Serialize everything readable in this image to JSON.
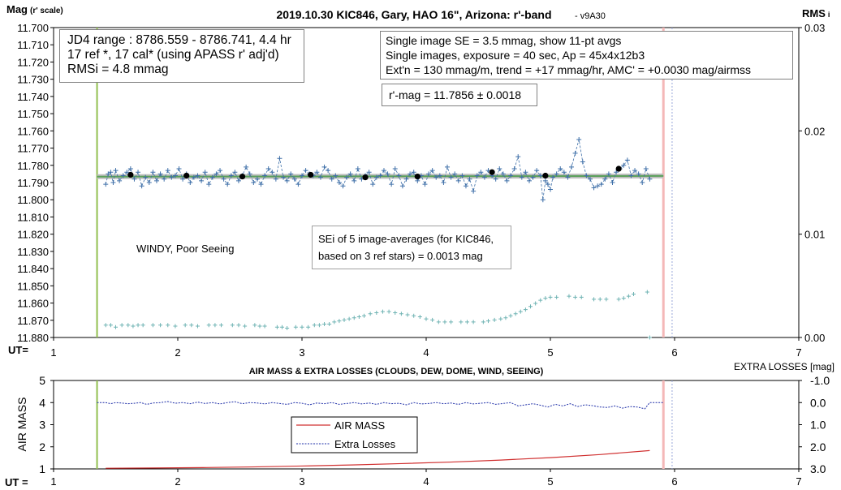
{
  "colors": {
    "mag_series": "#3e6fa8",
    "avg_points": "#000000",
    "trend_band": "#bfbfbf",
    "trend_line": "#5aa05a",
    "rms_series": "#6fb3b3",
    "start_marker": "#92c050",
    "end_marker": "#f4b8b8",
    "dotted_marker": "#9aa8d8",
    "airmass": "#d03030",
    "extra_losses": "#1f2fa8"
  },
  "chart_data": [
    {
      "type": "scatter",
      "title": "2019.10.30 KIC846, Gary, HAO 16\", Arizona: r'-band",
      "version": "- v9A30",
      "ylabel_left_main": "Mag",
      "ylabel_left_sub": "(r' scale)",
      "ylabel_right_main": "RMS",
      "ylabel_right_sub": "i",
      "xlabel": "UT=",
      "xlim": [
        1,
        7
      ],
      "x_ticks": [
        "1",
        "2",
        "3",
        "4",
        "5",
        "6",
        "7"
      ],
      "ylim_left": [
        11.88,
        11.7
      ],
      "y_ticks_left": [
        "11.700",
        "11.710",
        "11.720",
        "11.730",
        "11.740",
        "11.750",
        "11.760",
        "11.770",
        "11.780",
        "11.790",
        "11.800",
        "11.810",
        "11.820",
        "11.830",
        "11.840",
        "11.850",
        "11.860",
        "11.870",
        "11.880"
      ],
      "ylim_right": [
        0,
        0.03
      ],
      "y_ticks_right": [
        "0.00",
        "0.01",
        "0.02",
        "0.03"
      ],
      "markers": {
        "start_ut": 1.35,
        "end_ut": 5.91,
        "dotted_ut": 5.98
      },
      "trend": {
        "x": [
          1.35,
          5.91
        ],
        "y": [
          11.7866,
          11.7862
        ]
      },
      "series": [
        {
          "name": "",
          "style": "plus-dashed",
          "x": [
            1.42,
            1.44,
            1.46,
            1.48,
            1.5,
            1.53,
            1.56,
            1.59,
            1.62,
            1.65,
            1.68,
            1.71,
            1.74,
            1.77,
            1.8,
            1.83,
            1.86,
            1.89,
            1.92,
            1.95,
            1.98,
            2.01,
            2.04,
            2.07,
            2.1,
            2.13,
            2.16,
            2.19,
            2.22,
            2.25,
            2.28,
            2.31,
            2.34,
            2.37,
            2.4,
            2.43,
            2.46,
            2.49,
            2.52,
            2.55,
            2.58,
            2.61,
            2.64,
            2.67,
            2.7,
            2.73,
            2.76,
            2.79,
            2.82,
            2.85,
            2.88,
            2.91,
            2.94,
            2.97,
            3.0,
            3.03,
            3.06,
            3.09,
            3.12,
            3.15,
            3.18,
            3.21,
            3.24,
            3.27,
            3.3,
            3.33,
            3.36,
            3.39,
            3.42,
            3.45,
            3.48,
            3.51,
            3.54,
            3.57,
            3.6,
            3.63,
            3.66,
            3.69,
            3.72,
            3.75,
            3.78,
            3.81,
            3.84,
            3.87,
            3.9,
            3.93,
            3.96,
            3.99,
            4.02,
            4.05,
            4.08,
            4.11,
            4.14,
            4.17,
            4.2,
            4.23,
            4.26,
            4.29,
            4.32,
            4.35,
            4.38,
            4.41,
            4.44,
            4.47,
            4.5,
            4.53,
            4.56,
            4.59,
            4.62,
            4.65,
            4.68,
            4.71,
            4.74,
            4.77,
            4.8,
            4.83,
            4.86,
            4.89,
            4.92,
            4.94,
            4.96,
            4.98,
            5.0,
            5.02,
            5.05,
            5.08,
            5.11,
            5.14,
            5.17,
            5.2,
            5.23,
            5.26,
            5.29,
            5.32,
            5.35,
            5.38,
            5.41,
            5.44,
            5.47,
            5.5,
            5.53,
            5.56,
            5.59,
            5.62,
            5.65,
            5.68,
            5.71,
            5.74,
            5.77,
            5.8
          ],
          "y": [
            11.791,
            11.785,
            11.784,
            11.79,
            11.783,
            11.789,
            11.786,
            11.784,
            11.782,
            11.788,
            11.784,
            11.792,
            11.787,
            11.79,
            11.784,
            11.789,
            11.785,
            11.788,
            11.783,
            11.787,
            11.786,
            11.782,
            11.788,
            11.785,
            11.79,
            11.787,
            11.786,
            11.789,
            11.784,
            11.791,
            11.787,
            11.785,
            11.783,
            11.788,
            11.791,
            11.786,
            11.784,
            11.789,
            11.786,
            11.781,
            11.785,
            11.79,
            11.788,
            11.791,
            11.786,
            11.782,
            11.784,
            11.788,
            11.776,
            11.787,
            11.789,
            11.785,
            11.788,
            11.791,
            11.786,
            11.783,
            11.785,
            11.786,
            11.784,
            11.787,
            11.781,
            11.783,
            11.788,
            11.786,
            11.79,
            11.792,
            11.787,
            11.785,
            11.789,
            11.782,
            11.788,
            11.786,
            11.784,
            11.791,
            11.787,
            11.786,
            11.783,
            11.785,
            11.791,
            11.782,
            11.786,
            11.792,
            11.788,
            11.785,
            11.784,
            11.789,
            11.786,
            11.791,
            11.785,
            11.783,
            11.787,
            11.786,
            11.79,
            11.781,
            11.787,
            11.785,
            11.789,
            11.786,
            11.792,
            11.788,
            11.795,
            11.786,
            11.784,
            11.787,
            11.783,
            11.786,
            11.788,
            11.782,
            11.785,
            11.789,
            11.786,
            11.782,
            11.775,
            11.787,
            11.784,
            11.789,
            11.787,
            11.783,
            11.786,
            11.8,
            11.789,
            11.791,
            11.794,
            11.787,
            11.785,
            11.782,
            11.784,
            11.787,
            11.781,
            11.773,
            11.765,
            11.778,
            11.786,
            11.788,
            11.793,
            11.792,
            11.791,
            11.788,
            11.785,
            11.79,
            11.784,
            11.782,
            11.78,
            11.777,
            11.786,
            11.783,
            11.785,
            11.79,
            11.782,
            11.788
          ]
        },
        {
          "name": "",
          "style": "dot",
          "x": [
            1.62,
            2.07,
            2.52,
            3.07,
            3.51,
            3.93,
            4.53,
            4.96,
            5.55
          ],
          "y": [
            11.7855,
            11.786,
            11.7865,
            11.7855,
            11.787,
            11.7865,
            11.784,
            11.786,
            11.782
          ]
        },
        {
          "name": "",
          "style": "plus",
          "axis": "right",
          "x": [
            1.42,
            1.46,
            1.5,
            1.55,
            1.6,
            1.64,
            1.68,
            1.72,
            1.8,
            1.86,
            1.92,
            1.98,
            2.06,
            2.11,
            2.16,
            2.25,
            2.3,
            2.35,
            2.44,
            2.49,
            2.54,
            2.62,
            2.66,
            2.7,
            2.8,
            2.84,
            2.88,
            2.95,
            3.0,
            3.05,
            3.1,
            3.14,
            3.18,
            3.22,
            3.26,
            3.3,
            3.34,
            3.38,
            3.42,
            3.46,
            3.5,
            3.55,
            3.6,
            3.65,
            3.7,
            3.75,
            3.8,
            3.85,
            3.9,
            3.95,
            4.0,
            4.05,
            4.1,
            4.15,
            4.2,
            4.28,
            4.33,
            4.38,
            4.46,
            4.5,
            4.55,
            4.6,
            4.64,
            4.68,
            4.72,
            4.76,
            4.8,
            4.84,
            4.88,
            4.92,
            4.96,
            5.0,
            5.05,
            5.15,
            5.2,
            5.25,
            5.35,
            5.4,
            5.45,
            5.55,
            5.59,
            5.63,
            5.67,
            5.78,
            5.8
          ],
          "y": [
            0.0012,
            0.0012,
            0.001,
            0.0012,
            0.0012,
            0.0011,
            0.0012,
            0.0012,
            0.0012,
            0.0012,
            0.0012,
            0.0011,
            0.0012,
            0.0012,
            0.0011,
            0.0012,
            0.0012,
            0.0012,
            0.0012,
            0.0012,
            0.0011,
            0.0012,
            0.0011,
            0.0011,
            0.001,
            0.001,
            0.0009,
            0.001,
            0.001,
            0.001,
            0.0012,
            0.0012,
            0.0013,
            0.0013,
            0.0015,
            0.0016,
            0.0017,
            0.0018,
            0.0019,
            0.002,
            0.0021,
            0.0023,
            0.0024,
            0.0025,
            0.0025,
            0.0024,
            0.0023,
            0.0022,
            0.0021,
            0.002,
            0.0018,
            0.0017,
            0.0015,
            0.0015,
            0.0015,
            0.0015,
            0.0015,
            0.0015,
            0.0015,
            0.0016,
            0.0017,
            0.0018,
            0.0019,
            0.0021,
            0.0023,
            0.0025,
            0.0027,
            0.003,
            0.0033,
            0.0036,
            0.0038,
            0.0039,
            0.0039,
            0.004,
            0.0039,
            0.0039,
            0.0037,
            0.0037,
            0.0037,
            0.0037,
            0.0038,
            0.004,
            0.0042,
            0.0044,
            0.0
          ]
        }
      ],
      "annotations": {
        "box1": [
          "JD4 range : 8786.559 - 8786.741,  4.4  hr",
          "17 ref *, 17 cal* (using APASS r' adj'd)",
          "RMSi = 4.8 mmag"
        ],
        "box2": [
          "Single image SE = 3.5 mmag, show  11-pt avgs",
          "Single images, exposure = 40 sec, Ap = 45x4x12b3",
          "Ext'n = 130 mmag/m, trend =  +17 mmag/hr, AMC' = +0.0030 mag/airmss"
        ],
        "rmag": "r'-mag = 11.7856 ± 0.0018",
        "windy": "WINDY, Poor Seeing",
        "sei": [
          "SEi of 5 image-averages (for KIC846,",
          "based on 3 ref stars) = 0.0013 mag"
        ]
      }
    },
    {
      "type": "line",
      "title": "AIR MASS & EXTRA LOSSES (CLOUDS, DEW, DOME, WIND, SEEING)",
      "ylabel_left": "AIR MASS",
      "ylabel_right": "EXTRA LOSSES [mag]",
      "xlabel": "UT =",
      "xlim": [
        1,
        7
      ],
      "x_ticks": [
        "1",
        "2",
        "3",
        "4",
        "5",
        "6",
        "7"
      ],
      "ylim_left": [
        1,
        5
      ],
      "y_ticks_left": [
        "1",
        "2",
        "3",
        "4",
        "5"
      ],
      "ylim_right": [
        3.0,
        -1.0
      ],
      "y_ticks_right": [
        "3.0",
        "2.0",
        "1.0",
        "0.0",
        "-1.0"
      ],
      "markers": {
        "start_ut": 1.35,
        "end_ut": 5.91,
        "dotted_ut": 5.98
      },
      "legend": [
        "AIR MASS",
        "Extra Losses"
      ],
      "series": [
        {
          "name": "AIR MASS",
          "x": [
            1.42,
            1.8,
            2.2,
            2.6,
            3.0,
            3.4,
            3.8,
            4.2,
            4.6,
            5.0,
            5.4,
            5.8
          ],
          "y": [
            1.03,
            1.04,
            1.06,
            1.09,
            1.13,
            1.18,
            1.24,
            1.31,
            1.4,
            1.51,
            1.65,
            1.83
          ]
        },
        {
          "name": "Extra Losses",
          "x": [
            1.35,
            1.42,
            1.46,
            1.5,
            1.55,
            1.6,
            1.65,
            1.7,
            1.75,
            1.8,
            1.86,
            1.92,
            1.98,
            2.04,
            2.1,
            2.16,
            2.22,
            2.28,
            2.34,
            2.4,
            2.46,
            2.52,
            2.58,
            2.64,
            2.7,
            2.76,
            2.82,
            2.88,
            2.94,
            3.0,
            3.06,
            3.12,
            3.18,
            3.24,
            3.3,
            3.36,
            3.42,
            3.48,
            3.54,
            3.6,
            3.66,
            3.72,
            3.78,
            3.84,
            3.9,
            3.96,
            4.02,
            4.08,
            4.14,
            4.2,
            4.26,
            4.32,
            4.38,
            4.44,
            4.5,
            4.56,
            4.62,
            4.68,
            4.74,
            4.8,
            4.86,
            4.92,
            4.98,
            5.04,
            5.1,
            5.16,
            5.22,
            5.28,
            5.34,
            5.4,
            5.46,
            5.52,
            5.58,
            5.64,
            5.7,
            5.76,
            5.8,
            5.91
          ],
          "y": [
            0.0,
            0.0,
            0.05,
            0.0,
            0.02,
            0.05,
            0.03,
            0.0,
            0.08,
            0.02,
            0.0,
            -0.05,
            0.03,
            0.0,
            0.05,
            -0.02,
            0.04,
            0.0,
            0.06,
            0.0,
            -0.04,
            0.05,
            0.0,
            0.02,
            0.06,
            0.0,
            0.04,
            0.08,
            0.0,
            0.03,
            0.1,
            0.02,
            0.05,
            0.0,
            0.08,
            0.04,
            0.0,
            0.06,
            0.02,
            0.08,
            0.0,
            0.05,
            0.03,
            0.1,
            0.0,
            0.06,
            0.04,
            0.0,
            0.05,
            0.02,
            0.08,
            0.0,
            0.06,
            0.03,
            0.0,
            0.08,
            0.04,
            0.0,
            0.15,
            0.1,
            0.05,
            0.12,
            0.2,
            0.08,
            0.15,
            0.05,
            0.18,
            0.1,
            0.14,
            0.2,
            0.22,
            0.15,
            0.25,
            0.18,
            0.2,
            0.28,
            0.0,
            0.0
          ]
        }
      ]
    }
  ]
}
